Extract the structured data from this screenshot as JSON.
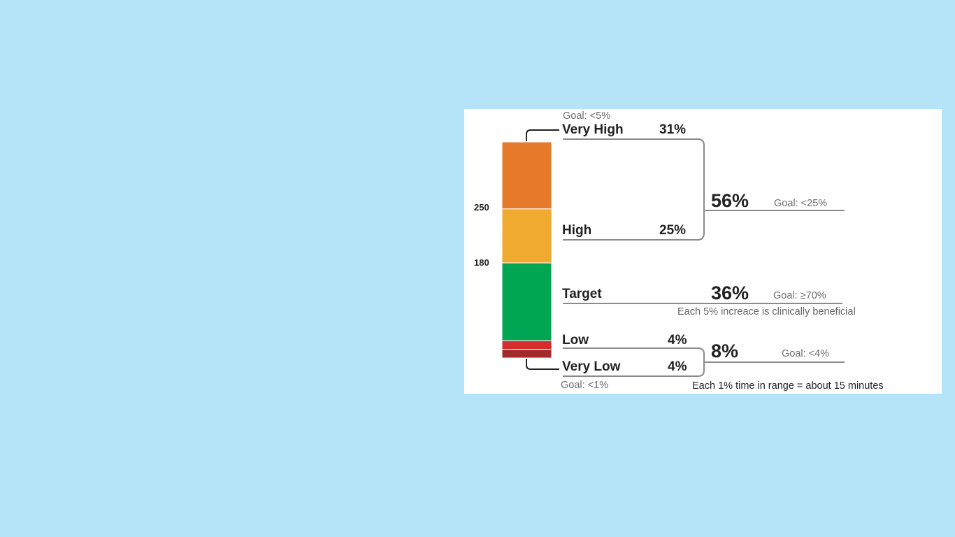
{
  "chart_data": {
    "type": "bar",
    "stacked": true,
    "orientation": "vertical",
    "categories": [
      "Very High",
      "High",
      "Target",
      "Low",
      "Very Low"
    ],
    "values": [
      31,
      25,
      36,
      4,
      4
    ],
    "unit": "%",
    "colors": {
      "very_high": "#e57a2b",
      "high": "#f0aa30",
      "target": "#00a651",
      "low": "#d62e2e",
      "very_low": "#a22a2a"
    },
    "axis_ticks": [
      "250",
      "180"
    ],
    "ranges": [
      {
        "label": "Very High",
        "pct": "31%",
        "goal": "Goal: <5%"
      },
      {
        "label": "High",
        "pct": "25%"
      },
      {
        "label": "Target",
        "pct": "36%",
        "goal": "Goal: ≥70%"
      },
      {
        "label": "Low",
        "pct": "4%"
      },
      {
        "label": "Very Low",
        "pct": "4%",
        "goal": "Goal: <1%"
      }
    ],
    "combined": [
      {
        "members": [
          "Very High",
          "High"
        ],
        "pct": "56%",
        "goal": "Goal: <25%"
      },
      {
        "members": [
          "Low",
          "Very Low"
        ],
        "pct": "8%",
        "goal": "Goal: <4%"
      }
    ],
    "notes": {
      "target": "Each 5% increace is clinically beneficial",
      "footer": "Each 1% time in range = about 15 minutes"
    }
  }
}
